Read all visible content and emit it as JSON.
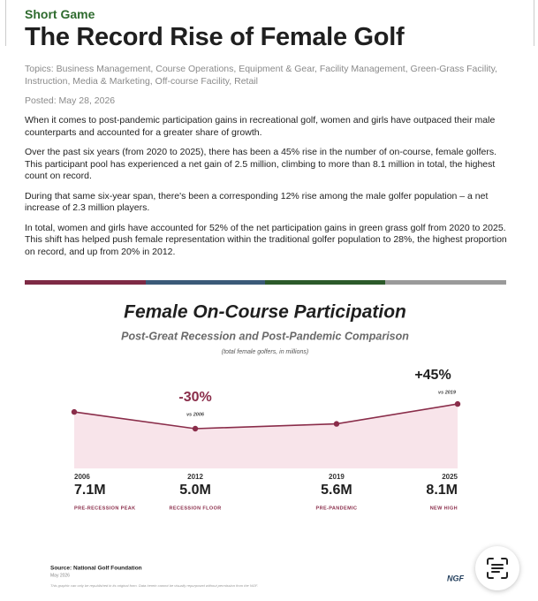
{
  "header": {
    "kicker": "Short Game",
    "title": "The Record Rise of Female Golf"
  },
  "topics": "Topics: Business Management, Course Operations, Equipment & Gear, Facility Management, Green-Grass Facility, Instruction, Media & Marketing, Off-course Facility, Retail",
  "posted": "Posted: May 28, 2026",
  "paragraphs": [
    "When it comes to post-pandemic participation gains in recreational golf, women and girls have outpaced their male counterparts and accounted for a greater share of growth.",
    "Over the past six years (from 2020 to 2025), there has been a 45% rise in the number of on-course, female golfers. This participant pool has experienced a net gain of 2.5 million, climbing to more than 8.1 million in total, the highest count on record.",
    "During that same six-year span, there's been a corresponding 12% rise among the male golfer population – a net increase of 2.3 million players.",
    "In total, women and girls have accounted for 52% of the net participation gains in green grass golf from 2020 to 2025. This shift has helped push female representation within the traditional golfer population to 28%, the highest proportion on record, and up from 20% in 2012."
  ],
  "chart_data": {
    "type": "area",
    "title": "Female On-Course Participation",
    "subtitle": "Post-Great Recession and Post-Pandemic Comparison",
    "note": "(total female golfers, in millions)",
    "x": [
      2006,
      2012,
      2019,
      2025
    ],
    "xlim": [
      2006,
      2025
    ],
    "values": [
      7.1,
      5.0,
      5.6,
      8.1
    ],
    "value_labels": [
      "7.1M",
      "5.0M",
      "5.6M",
      "8.1M"
    ],
    "point_labels": [
      "PRE-RECESSION PEAK",
      "RECESSION FLOOR",
      "PRE-PANDEMIC",
      "NEW HIGH"
    ],
    "ylim": [
      0,
      9
    ],
    "color": "#8a2d4a",
    "fill": "#f8e4ea",
    "annotations": [
      {
        "text": "-30%",
        "note": "vs 2006",
        "x": 2012
      },
      {
        "text": "+45%",
        "note": "vs 2019",
        "x": 2025
      }
    ]
  },
  "footer": {
    "source": "Source: National Golf Foundation",
    "date": "May 2026",
    "fine_print": "This graphic can only be republished in its original form. Data herein cannot be visually repurposed without permission from the NGF.",
    "logo": "NGF"
  }
}
